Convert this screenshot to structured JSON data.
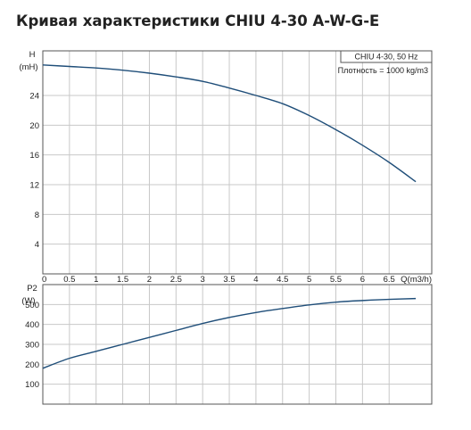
{
  "title": "Кривая характеристики CHIU 4-30 A-W-G-E",
  "legend": {
    "model": "CHIU 4-30, 50 Hz",
    "density": "Плотность = 1000 kg/m3"
  },
  "colors": {
    "curve": "#1f4e79",
    "grid": "#c8c8c8",
    "frame": "#555555"
  },
  "chart_data": [
    {
      "type": "line",
      "ylabel_line1": "H",
      "ylabel_line2": "(mH)",
      "xlabel": "Q(m3/h)",
      "xlim": [
        0,
        7.3
      ],
      "ylim": [
        0,
        30
      ],
      "xticks": [
        "0",
        "0.5",
        "1",
        "1.5",
        "2",
        "2.5",
        "3",
        "3.5",
        "4",
        "4.5",
        "5",
        "5.5",
        "6",
        "6.5"
      ],
      "yticks": [
        "4",
        "8",
        "12",
        "16",
        "20",
        "24"
      ],
      "grid": true,
      "series": [
        {
          "x": [
            0,
            0.5,
            1,
            1.5,
            2,
            2.5,
            3,
            3.5,
            4,
            4.5,
            5,
            5.5,
            6,
            6.5,
            7
          ],
          "y": [
            28.1,
            27.9,
            27.7,
            27.4,
            27.0,
            26.5,
            25.9,
            25.0,
            24.0,
            22.9,
            21.3,
            19.4,
            17.3,
            15.0,
            12.4
          ]
        }
      ]
    },
    {
      "type": "line",
      "ylabel_line1": "P2",
      "ylabel_line2": "(W)",
      "xlim": [
        0,
        7.3
      ],
      "ylim": [
        0,
        600
      ],
      "yticks": [
        "100",
        "200",
        "300",
        "400",
        "500"
      ],
      "grid": true,
      "series": [
        {
          "x": [
            0,
            0.5,
            1,
            1.5,
            2,
            2.5,
            3,
            3.5,
            4,
            4.5,
            5,
            5.5,
            6,
            6.5,
            7
          ],
          "y": [
            180,
            230,
            265,
            300,
            335,
            370,
            405,
            435,
            460,
            480,
            498,
            512,
            520,
            526,
            530
          ]
        }
      ]
    }
  ]
}
